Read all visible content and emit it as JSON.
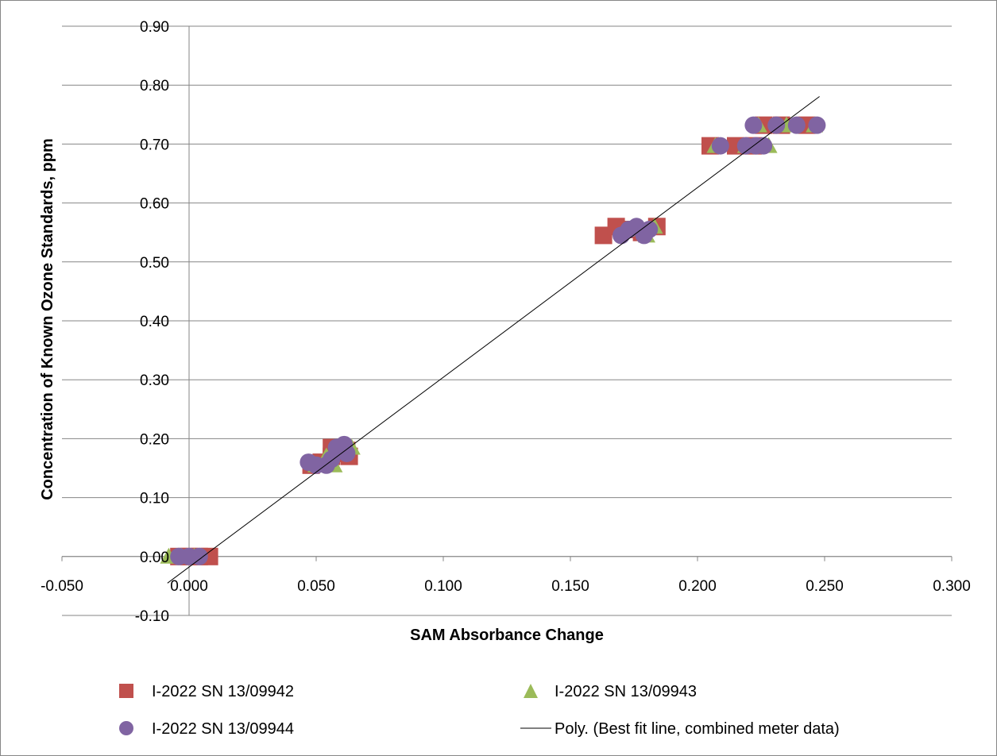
{
  "chart_data": {
    "type": "scatter",
    "title": "",
    "xlabel": "SAM Absorbance Change",
    "ylabel": "Concentration of Known Ozone Standards, ppm",
    "xlim": [
      -0.05,
      0.3
    ],
    "ylim": [
      -0.1,
      0.9
    ],
    "x_ticks": [
      "-0.050",
      "0.000",
      "0.050",
      "0.100",
      "0.150",
      "0.200",
      "0.250",
      "0.300"
    ],
    "y_ticks": [
      "-0.10",
      "0.00",
      "0.10",
      "0.20",
      "0.30",
      "0.40",
      "0.50",
      "0.60",
      "0.70",
      "0.80",
      "0.90"
    ],
    "grid": "horizontal",
    "legend_position": "bottom",
    "series": [
      {
        "name": "I-2022 SN 13/09942",
        "marker": "square",
        "color": "#C0504D",
        "points": [
          [
            -0.004,
            0.0
          ],
          [
            0.0,
            0.0
          ],
          [
            0.004,
            0.0
          ],
          [
            0.008,
            0.0
          ],
          [
            0.048,
            0.155
          ],
          [
            0.052,
            0.16
          ],
          [
            0.056,
            0.17
          ],
          [
            0.056,
            0.185
          ],
          [
            0.06,
            0.175
          ],
          [
            0.063,
            0.17
          ],
          [
            0.062,
            0.18
          ],
          [
            0.163,
            0.545
          ],
          [
            0.168,
            0.56
          ],
          [
            0.172,
            0.555
          ],
          [
            0.178,
            0.55
          ],
          [
            0.184,
            0.56
          ],
          [
            0.205,
            0.697
          ],
          [
            0.215,
            0.697
          ],
          [
            0.222,
            0.697
          ],
          [
            0.226,
            0.732
          ],
          [
            0.233,
            0.732
          ],
          [
            0.243,
            0.732
          ]
        ]
      },
      {
        "name": "I-2022 SN 13/09943",
        "marker": "triangle",
        "color": "#9BBB59",
        "points": [
          [
            -0.008,
            0.0
          ],
          [
            -0.003,
            0.0
          ],
          [
            0.002,
            0.0
          ],
          [
            0.05,
            0.155
          ],
          [
            0.054,
            0.17
          ],
          [
            0.057,
            0.155
          ],
          [
            0.06,
            0.185
          ],
          [
            0.064,
            0.185
          ],
          [
            0.172,
            0.555
          ],
          [
            0.176,
            0.56
          ],
          [
            0.18,
            0.545
          ],
          [
            0.183,
            0.56
          ],
          [
            0.207,
            0.697
          ],
          [
            0.219,
            0.697
          ],
          [
            0.228,
            0.697
          ],
          [
            0.224,
            0.732
          ],
          [
            0.235,
            0.732
          ],
          [
            0.246,
            0.732
          ]
        ]
      },
      {
        "name": "I-2022 SN 13/09944",
        "marker": "circle",
        "color": "#8064A2",
        "points": [
          [
            -0.004,
            0.0
          ],
          [
            0.0,
            0.0
          ],
          [
            0.004,
            0.0
          ],
          [
            0.047,
            0.16
          ],
          [
            0.05,
            0.155
          ],
          [
            0.054,
            0.155
          ],
          [
            0.056,
            0.165
          ],
          [
            0.058,
            0.185
          ],
          [
            0.061,
            0.19
          ],
          [
            0.062,
            0.175
          ],
          [
            0.17,
            0.545
          ],
          [
            0.173,
            0.555
          ],
          [
            0.176,
            0.56
          ],
          [
            0.179,
            0.545
          ],
          [
            0.181,
            0.555
          ],
          [
            0.209,
            0.697
          ],
          [
            0.219,
            0.697
          ],
          [
            0.223,
            0.697
          ],
          [
            0.226,
            0.697
          ],
          [
            0.222,
            0.732
          ],
          [
            0.231,
            0.732
          ],
          [
            0.239,
            0.732
          ],
          [
            0.247,
            0.732
          ]
        ]
      }
    ],
    "fit_line": {
      "name": "Poly. (Best fit line, combined meter data)",
      "color": "#000000",
      "x_range": [
        -0.0085,
        0.248
      ],
      "coefficients": [
        -0.0178,
        3.22
      ]
    }
  }
}
